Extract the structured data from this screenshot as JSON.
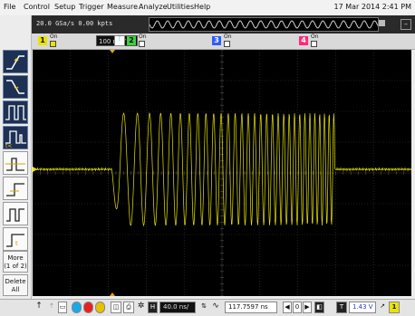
{
  "menu": [
    "File",
    "Control",
    "Setup",
    "Trigger",
    "Measure",
    "Analyze",
    "Utilities",
    "Help"
  ],
  "datetime": "17 Mar 2014  2:41 PM",
  "acq": {
    "sample_rate": "20.0 GSa/s   0.00 kpts"
  },
  "channels": [
    {
      "num": "1",
      "state": "On",
      "scale": "100 mV/",
      "color": "#e8e400"
    },
    {
      "num": "2",
      "state": "On",
      "color": "#3fcf3f"
    },
    {
      "num": "3",
      "state": "On",
      "color": "#2f5cff"
    },
    {
      "num": "4",
      "state": "On",
      "color": "#ff2a7a"
    }
  ],
  "sidebar": {
    "more_label": "More",
    "more_sub": "(1 of 2)",
    "delete_label": "Delete",
    "delete_sub": "All"
  },
  "bottom": {
    "horizontal_scale": "40.0 ns/",
    "horizontal_position": "117.7597 ns",
    "trigger_level": "1.43 V",
    "trigger_channel": "1"
  },
  "colors": {
    "trace": "#e8e400",
    "grid": "#3a3a3a",
    "screen": "#000000"
  }
}
